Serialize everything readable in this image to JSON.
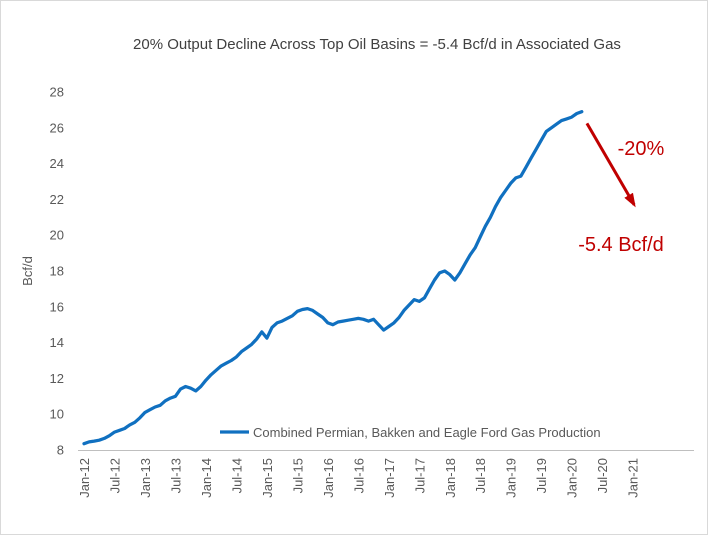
{
  "chart_data": {
    "type": "line",
    "title": "20% Output Decline Across Top Oil Basins = -5.4 Bcf/d in Associated Gas",
    "xlabel": "",
    "ylabel": "Bcf/d",
    "ylim": [
      8,
      28
    ],
    "ytick_step": 2,
    "ytick_labels": [
      "8",
      "10",
      "12",
      "14",
      "16",
      "18",
      "20",
      "22",
      "24",
      "26",
      "28"
    ],
    "xtick_labels": [
      "Jan-12",
      "Jul-12",
      "Jan-13",
      "Jul-13",
      "Jan-14",
      "Jul-14",
      "Jan-15",
      "Jul-15",
      "Jan-16",
      "Jul-16",
      "Jan-17",
      "Jul-17",
      "Jan-18",
      "Jul-18",
      "Jan-19",
      "Jul-19",
      "Jan-20",
      "Jul-20",
      "Jan-21"
    ],
    "xtick_interval_months": 6,
    "grid": false,
    "legend_position": "bottom-center-inside",
    "series": [
      {
        "name": "Combined Permian, Bakken and Eagle Ford Gas Production",
        "color": "#1070C0",
        "start": "Jan-12",
        "end": "Mar-20",
        "monthly_values": [
          8.35,
          8.45,
          8.5,
          8.55,
          8.65,
          8.8,
          9.0,
          9.1,
          9.2,
          9.4,
          9.55,
          9.8,
          10.1,
          10.25,
          10.4,
          10.5,
          10.75,
          10.9,
          11.0,
          11.4,
          11.55,
          11.45,
          11.3,
          11.55,
          11.9,
          12.2,
          12.45,
          12.7,
          12.85,
          13.0,
          13.2,
          13.5,
          13.7,
          13.9,
          14.2,
          14.6,
          14.25,
          14.85,
          15.1,
          15.2,
          15.35,
          15.5,
          15.75,
          15.85,
          15.9,
          15.8,
          15.6,
          15.4,
          15.1,
          15.0,
          15.15,
          15.2,
          15.25,
          15.3,
          15.35,
          15.3,
          15.2,
          15.3,
          15.0,
          14.7,
          14.9,
          15.1,
          15.4,
          15.8,
          16.1,
          16.4,
          16.3,
          16.5,
          17.0,
          17.5,
          17.9,
          18.0,
          17.8,
          17.5,
          17.9,
          18.4,
          18.9,
          19.3,
          19.9,
          20.5,
          21.0,
          21.6,
          22.1,
          22.5,
          22.9,
          23.2,
          23.3,
          23.8,
          24.3,
          24.8,
          25.3,
          25.8,
          26.0,
          26.2,
          26.4,
          26.5,
          26.6,
          26.8,
          26.9
        ]
      }
    ],
    "annotations": [
      {
        "text": "-20%",
        "color": "#C00000"
      },
      {
        "text": "-5.4 Bcf/d",
        "color": "#C00000"
      }
    ],
    "arrow": {
      "from_month_index": 99.0,
      "from_value": 26.25,
      "to_month_index": 108.3,
      "to_value": 21.7,
      "color": "#C00000"
    }
  },
  "style": {
    "background": "#FFFFFF",
    "title_color": "#404040",
    "axis_text_color": "#595959",
    "axis_line_color": "#BFBFBF",
    "border_color": "#D9D9D9"
  }
}
